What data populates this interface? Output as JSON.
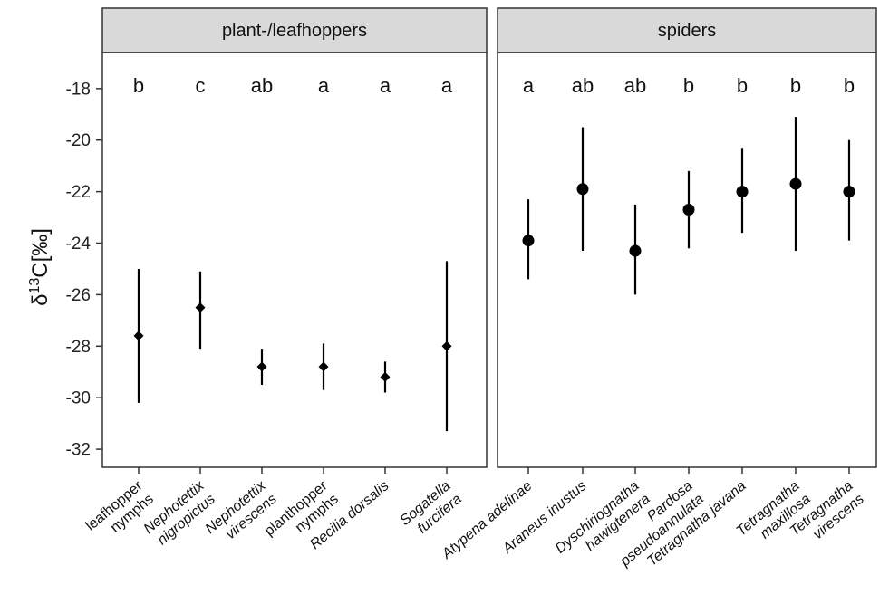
{
  "chart_data": {
    "type": "errorbar",
    "ylabel": "δ 13C[‰]",
    "ylabel_parts": {
      "delta": "δ",
      "sup": "13",
      "rest": "C[‰]"
    },
    "ylim": [
      -32.7,
      -16.6
    ],
    "yticks": [
      -32,
      -30,
      -28,
      -26,
      -24,
      -22,
      -20,
      -18
    ],
    "ytick_labels": [
      "-32",
      "-30",
      "-28",
      "-26",
      "-24",
      "-22",
      "-20",
      "-18"
    ],
    "grid": false,
    "panels": [
      {
        "title": "plant-/leafhoppers",
        "marker": "diamond",
        "categories": [
          {
            "lines": [
              "leafhopper",
              "nymphs"
            ],
            "italic": false
          },
          {
            "lines": [
              "Nephotettix",
              "nigropictus"
            ],
            "italic": true
          },
          {
            "lines": [
              "Nephotettix",
              "virescens"
            ],
            "italic": true
          },
          {
            "lines": [
              "planthopper",
              "nymphs"
            ],
            "italic": false
          },
          {
            "lines": [
              "Recilia dorsalis"
            ],
            "italic": true
          },
          {
            "lines": [
              "Sogatella",
              "furcifera"
            ],
            "italic": true
          }
        ],
        "means": [
          -27.6,
          -26.5,
          -28.8,
          -28.8,
          -29.2,
          -28.0
        ],
        "lower": [
          -30.2,
          -28.1,
          -29.5,
          -29.7,
          -29.8,
          -31.3
        ],
        "upper": [
          -25.0,
          -25.1,
          -28.1,
          -27.9,
          -28.6,
          -24.7
        ],
        "letters": [
          "b",
          "c",
          "ab",
          "a",
          "a",
          "a"
        ]
      },
      {
        "title": "spiders",
        "marker": "circle",
        "categories": [
          {
            "lines": [
              "Atypena adelinae"
            ],
            "italic": true
          },
          {
            "lines": [
              "Araneus inustus"
            ],
            "italic": true
          },
          {
            "lines": [
              "Dyschiriognatha",
              "hawigtenera"
            ],
            "italic": true
          },
          {
            "lines": [
              "Pardosa",
              "pseudoannulata"
            ],
            "italic": true
          },
          {
            "lines": [
              "Tetragnatha javana"
            ],
            "italic": true
          },
          {
            "lines": [
              "Tetragnatha",
              "maxillosa"
            ],
            "italic": true
          },
          {
            "lines": [
              "Tetragnatha",
              "virescens"
            ],
            "italic": true
          }
        ],
        "means": [
          -23.9,
          -21.9,
          -24.3,
          -22.7,
          -22.0,
          -21.7,
          -22.0
        ],
        "lower": [
          -25.4,
          -24.3,
          -26.0,
          -24.2,
          -23.6,
          -24.3,
          -23.9
        ],
        "upper": [
          -22.3,
          -19.5,
          -22.5,
          -21.2,
          -20.3,
          -19.1,
          -20.0
        ],
        "letters": [
          "a",
          "ab",
          "ab",
          "b",
          "b",
          "b",
          "b"
        ]
      }
    ]
  }
}
